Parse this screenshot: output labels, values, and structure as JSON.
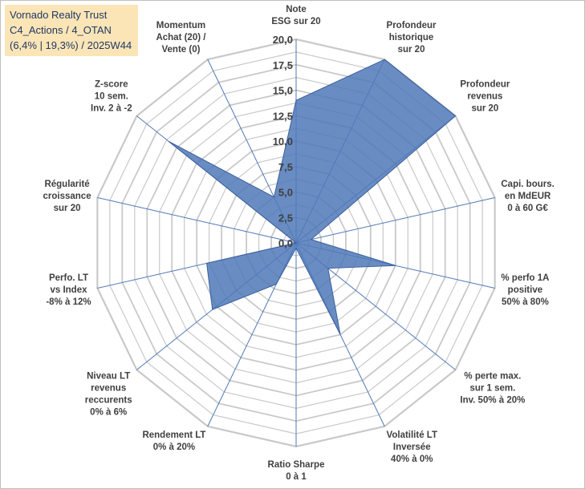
{
  "header": {
    "line1": "Vornado Realty Trust",
    "line2": "C4_Actions / 4_OTAN",
    "line3": "(6,4% | 19,3%) / 2025W44"
  },
  "colors": {
    "fill": "#4f79b8",
    "stroke": "#3a5f9c",
    "grid": "#c9c9c9",
    "spoke": "#4f79b8",
    "title_bg": "#fbe5b6"
  },
  "chart_data": {
    "type": "radar",
    "title": "Vornado Realty Trust",
    "rmin": 0,
    "rmax": 20,
    "ticks": [
      "0,0",
      "2,5",
      "5,0",
      "7,5",
      "10,0",
      "12,5",
      "15,0",
      "17,5",
      "20,0"
    ],
    "tick_values": [
      0,
      2.5,
      5,
      7.5,
      10,
      12.5,
      15,
      17.5,
      20
    ],
    "categories": [
      [
        "Note",
        "ESG sur 20"
      ],
      [
        "Profondeur",
        "historique",
        "sur 20"
      ],
      [
        "Profondeur",
        "revenus",
        "sur 20"
      ],
      [
        "Capi. bours.",
        "en MdEUR",
        "0 à 60 G€"
      ],
      [
        "% perfo 1A",
        "positive",
        "50% à 80%"
      ],
      [
        "% perte max.",
        "sur 1 sem.",
        "Inv. 50% à 20%"
      ],
      [
        "Volatilité LT",
        "Inversée",
        "40% à 0%"
      ],
      [
        "Ratio Sharpe",
        "0 à 1"
      ],
      [
        "Rendement LT",
        "0% à 20%"
      ],
      [
        "Niveau LT",
        "revenus",
        "reccurents",
        "0% à 6%"
      ],
      [
        "Perfo. LT",
        "vs Index",
        "-8% à 12%"
      ],
      [
        "Régularité",
        "croissance",
        "sur 20"
      ],
      [
        "Z-score",
        "10 sem.",
        "Inv. 2 à -2"
      ],
      [
        "Momentum",
        "Achat (20) /",
        "Vente (0)"
      ]
    ],
    "values": [
      14.0,
      20.0,
      20.0,
      1.5,
      10.0,
      4.0,
      10.0,
      0.5,
      4.5,
      10.5,
      9.0,
      0.0,
      16.0,
      5.0
    ]
  }
}
